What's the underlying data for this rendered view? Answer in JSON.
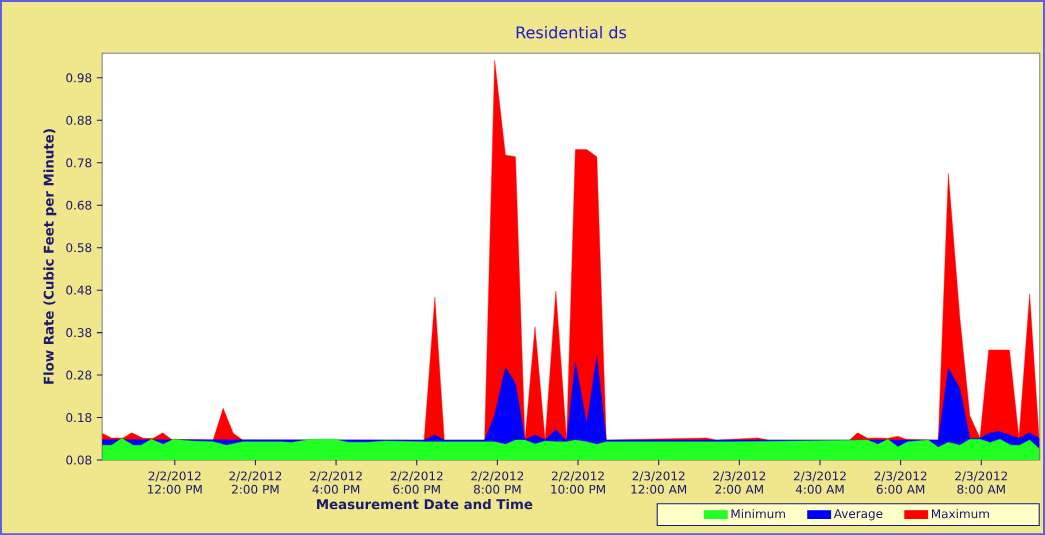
{
  "chart_data": {
    "type": "area",
    "title": "Residential ds",
    "xlabel": "Measurement Date and Time",
    "ylabel": "Flow Rate (Cubic Feet per Minute)",
    "legend": "bottom right",
    "xlim": [
      "2012-02-02T10:12",
      "2012-02-03T09:27"
    ],
    "ylim": [
      0.08,
      1.038
    ],
    "xticks": [
      {
        "value": "2012-02-02T12:00",
        "label": "2/2/2012 12:00 PM"
      },
      {
        "value": "2012-02-02T14:00",
        "label": "2/2/2012 2:00 PM"
      },
      {
        "value": "2012-02-02T16:00",
        "label": "2/2/2012 4:00 PM"
      },
      {
        "value": "2012-02-02T18:00",
        "label": "2/2/2012 6:00 PM"
      },
      {
        "value": "2012-02-02T20:00",
        "label": "2/2/2012 8:00 PM"
      },
      {
        "value": "2012-02-02T22:00",
        "label": "2/2/2012 10:00 PM"
      },
      {
        "value": "2012-02-03T00:00",
        "label": "2/3/2012 12:00 AM"
      },
      {
        "value": "2012-02-03T02:00",
        "label": "2/3/2012 2:00 AM"
      },
      {
        "value": "2012-02-03T04:00",
        "label": "2/3/2012 4:00 AM"
      },
      {
        "value": "2012-02-03T06:00",
        "label": "2/3/2012 6:00 AM"
      },
      {
        "value": "2012-02-03T08:00",
        "label": "2/3/2012 8:00 AM"
      }
    ],
    "yticks": [
      0.08,
      0.18,
      0.28,
      0.38,
      0.48,
      0.58,
      0.68,
      0.78,
      0.88,
      0.98
    ],
    "series": [
      {
        "name": "Minimum",
        "color": "#22ff22",
        "x": [
          "2012-02-02T10:12",
          "2012-02-02T10:26",
          "2012-02-02T10:41",
          "2012-02-02T10:58",
          "2012-02-02T11:10",
          "2012-02-02T11:25",
          "2012-02-02T11:43",
          "2012-02-02T11:58",
          "2012-02-02T12:25",
          "2012-02-02T12:57",
          "2012-02-02T13:17",
          "2012-02-02T13:41",
          "2012-02-02T14:39",
          "2012-02-02T14:53",
          "2012-02-02T15:23",
          "2012-02-02T15:58",
          "2012-02-02T16:18",
          "2012-02-02T16:47",
          "2012-02-02T17:13",
          "2012-02-02T18:09",
          "2012-02-02T19:56",
          "2012-02-02T20:12",
          "2012-02-02T20:27",
          "2012-02-02T20:41",
          "2012-02-02T20:56",
          "2012-02-02T21:11",
          "2012-02-02T21:27",
          "2012-02-02T21:43",
          "2012-02-02T21:56",
          "2012-02-02T22:13",
          "2012-02-02T22:28",
          "2012-02-02T22:42",
          "2012-02-03T01:53",
          "2012-02-03T05:11",
          "2012-02-03T05:26",
          "2012-02-03T05:41",
          "2012-02-03T05:56",
          "2012-02-03T06:11",
          "2012-02-03T06:41",
          "2012-02-03T06:56",
          "2012-02-03T07:11",
          "2012-02-03T07:28",
          "2012-02-03T07:43",
          "2012-02-03T07:58",
          "2012-02-03T08:13",
          "2012-02-03T08:28",
          "2012-02-03T08:44",
          "2012-02-03T08:57",
          "2012-02-03T09:12",
          "2012-02-03T09:26"
        ],
        "values": [
          0.115,
          0.115,
          0.131,
          0.115,
          0.115,
          0.129,
          0.117,
          0.129,
          0.125,
          0.123,
          0.115,
          0.123,
          0.123,
          0.121,
          0.129,
          0.129,
          0.122,
          0.122,
          0.125,
          0.123,
          0.123,
          0.117,
          0.127,
          0.127,
          0.118,
          0.125,
          0.123,
          0.123,
          0.127,
          0.123,
          0.117,
          0.123,
          0.123,
          0.127,
          0.117,
          0.129,
          0.111,
          0.123,
          0.127,
          0.11,
          0.122,
          0.115,
          0.129,
          0.129,
          0.121,
          0.129,
          0.115,
          0.115,
          0.127,
          0.107
        ]
      },
      {
        "name": "Average",
        "color": "#0000ff",
        "x": [
          "2012-02-02T10:12",
          "2012-02-02T18:11",
          "2012-02-02T18:27",
          "2012-02-02T18:41",
          "2012-02-02T19:41",
          "2012-02-02T19:56",
          "2012-02-02T20:12",
          "2012-02-02T20:27",
          "2012-02-02T20:41",
          "2012-02-02T20:56",
          "2012-02-02T21:11",
          "2012-02-02T21:27",
          "2012-02-02T21:43",
          "2012-02-02T21:56",
          "2012-02-02T22:13",
          "2012-02-02T22:28",
          "2012-02-02T22:42",
          "2012-02-03T06:56",
          "2012-02-03T07:11",
          "2012-02-03T07:28",
          "2012-02-03T07:43",
          "2012-02-03T07:58",
          "2012-02-03T08:11",
          "2012-02-03T08:26",
          "2012-02-03T08:42",
          "2012-02-03T08:56",
          "2012-02-03T09:12",
          "2012-02-03T09:26"
        ],
        "values": [
          0.128,
          0.127,
          0.139,
          0.127,
          0.127,
          0.186,
          0.298,
          0.26,
          0.128,
          0.139,
          0.128,
          0.152,
          0.125,
          0.311,
          0.166,
          0.325,
          0.127,
          0.127,
          0.296,
          0.249,
          0.131,
          0.131,
          0.143,
          0.148,
          0.139,
          0.131,
          0.144,
          0.131
        ]
      },
      {
        "name": "Maximum",
        "color": "#ff0000",
        "x": [
          "2012-02-02T10:12",
          "2012-02-02T10:26",
          "2012-02-02T10:43",
          "2012-02-02T10:56",
          "2012-02-02T11:13",
          "2012-02-02T11:28",
          "2012-02-02T11:42",
          "2012-02-02T11:55",
          "2012-02-02T12:57",
          "2012-02-02T13:12",
          "2012-02-02T13:27",
          "2012-02-02T13:41",
          "2012-02-02T18:11",
          "2012-02-02T18:27",
          "2012-02-02T18:41",
          "2012-02-02T19:41",
          "2012-02-02T19:56",
          "2012-02-02T20:12",
          "2012-02-02T20:27",
          "2012-02-02T20:41",
          "2012-02-02T20:56",
          "2012-02-02T21:11",
          "2012-02-02T21:27",
          "2012-02-02T21:43",
          "2012-02-02T21:56",
          "2012-02-02T22:13",
          "2012-02-02T22:28",
          "2012-02-02T22:42",
          "2012-02-03T01:11",
          "2012-02-03T01:26",
          "2012-02-03T02:28",
          "2012-02-03T02:43",
          "2012-02-03T04:44",
          "2012-02-03T04:56",
          "2012-02-03T05:11",
          "2012-02-03T05:24",
          "2012-02-03T05:41",
          "2012-02-03T05:56",
          "2012-02-03T06:08",
          "2012-02-03T06:56",
          "2012-02-03T07:11",
          "2012-02-03T07:28",
          "2012-02-03T07:43",
          "2012-02-03T07:58",
          "2012-02-03T08:11",
          "2012-02-03T08:42",
          "2012-02-03T08:56",
          "2012-02-03T09:12",
          "2012-02-03T09:26"
        ],
        "values": [
          0.143,
          0.132,
          0.132,
          0.144,
          0.131,
          0.131,
          0.144,
          0.129,
          0.127,
          0.202,
          0.143,
          0.127,
          0.127,
          0.464,
          0.127,
          0.127,
          1.021,
          0.798,
          0.794,
          0.127,
          0.394,
          0.127,
          0.478,
          0.128,
          0.811,
          0.811,
          0.794,
          0.127,
          0.132,
          0.127,
          0.132,
          0.127,
          0.127,
          0.144,
          0.131,
          0.132,
          0.131,
          0.136,
          0.129,
          0.127,
          0.755,
          0.417,
          0.184,
          0.132,
          0.339,
          0.339,
          0.132,
          0.471,
          0.131
        ]
      }
    ]
  }
}
